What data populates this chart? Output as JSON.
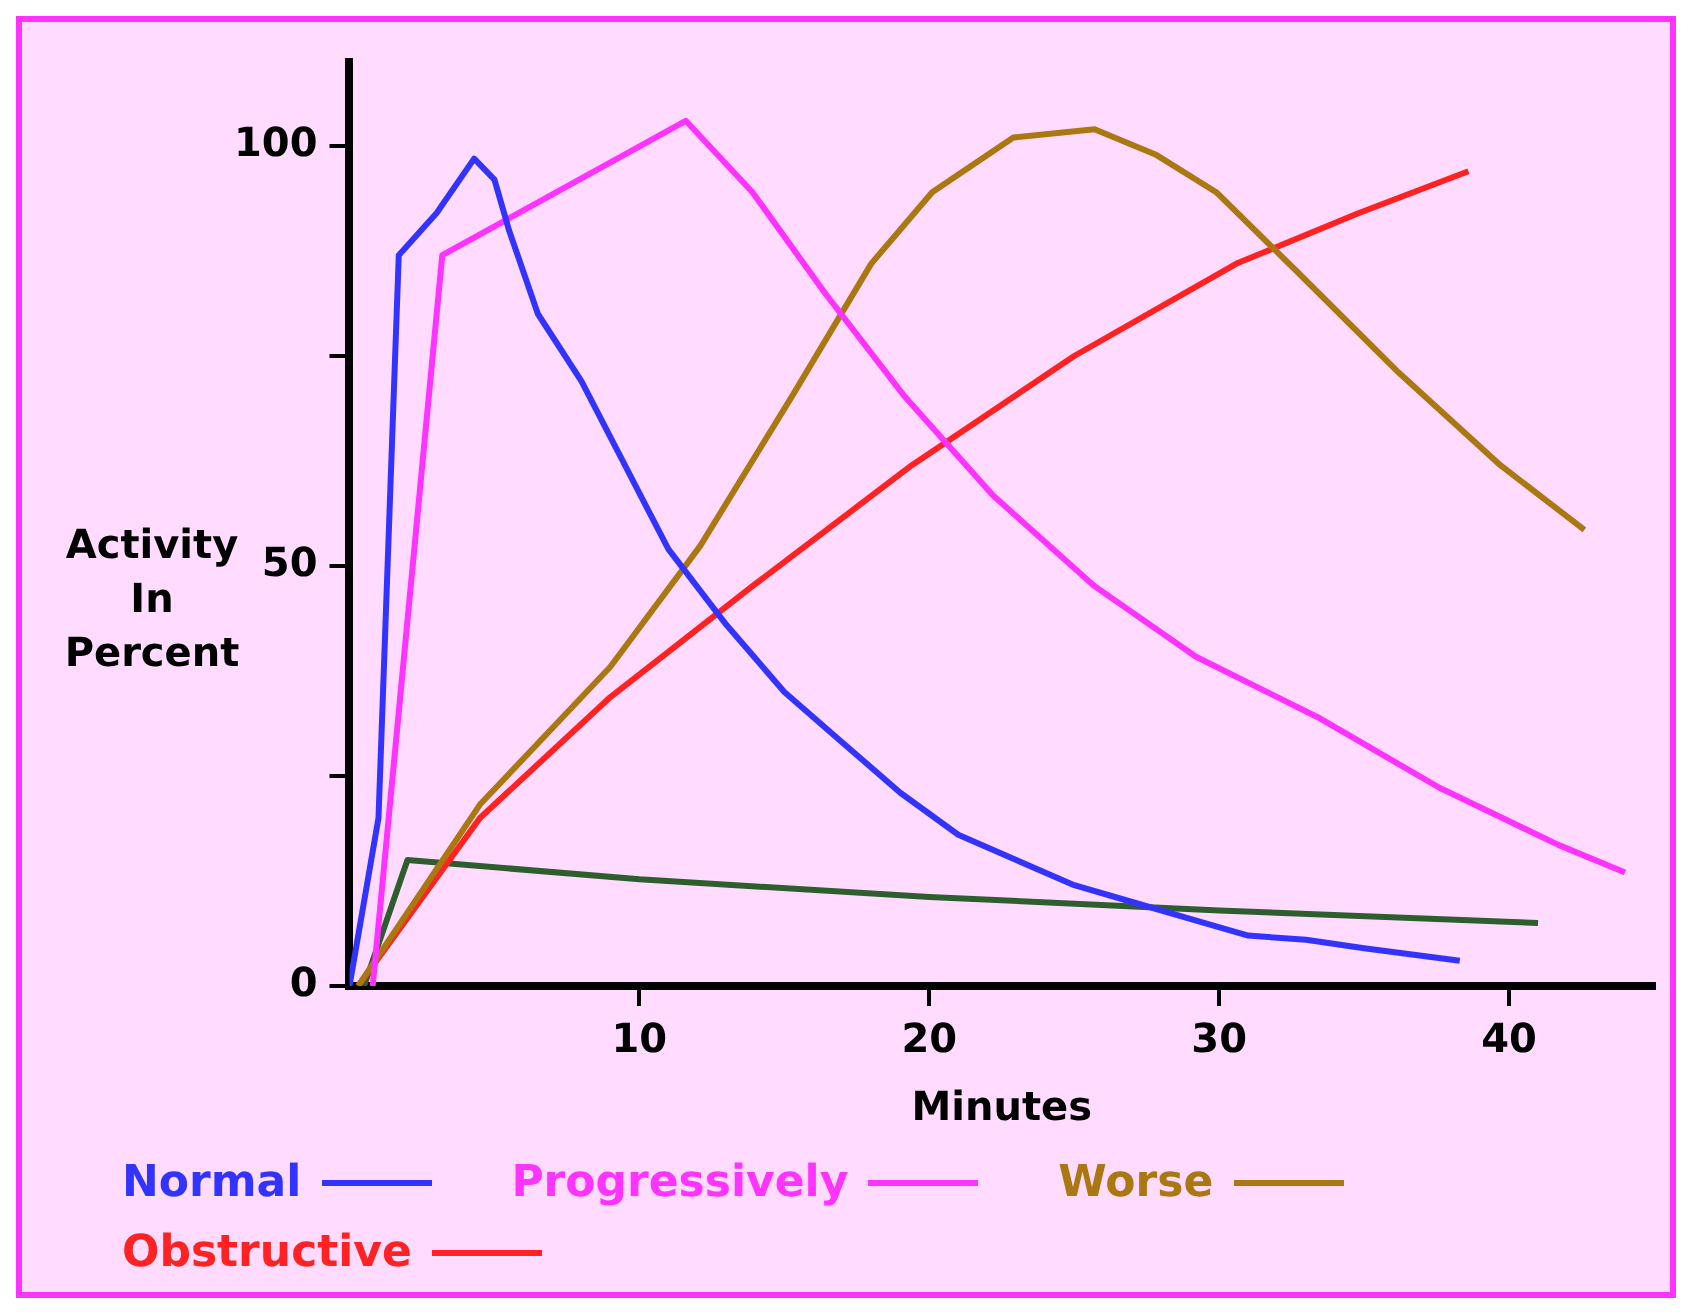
{
  "chart_data": {
    "type": "line",
    "xlabel": "Minutes",
    "ylabel": "Activity In Percent",
    "xlim": [
      0,
      45
    ],
    "ylim": [
      0,
      110
    ],
    "xticks": [
      10,
      20,
      30,
      40
    ],
    "yticks": [
      0,
      {
        "value": 25,
        "label": null
      },
      50,
      {
        "value": 75,
        "label": null
      },
      100
    ],
    "grid": false,
    "legend": "bottom",
    "marker": "none",
    "line_style": "solid",
    "series": [
      {
        "name": "Normal",
        "color": "#3333ff",
        "x": [
          0,
          1,
          1.7,
          3,
          4.3,
          5,
          5.5,
          6.5,
          8,
          9.5,
          11,
          13,
          15,
          17,
          19,
          21,
          23,
          25,
          27,
          29,
          31,
          33,
          35,
          38.3
        ],
        "values": [
          0,
          20,
          87,
          92,
          98.5,
          96,
          90,
          80,
          72,
          62,
          52,
          43,
          35,
          29,
          23,
          18,
          15,
          12,
          10,
          8,
          6,
          5.5,
          4.5,
          3
        ]
      },
      {
        "name": "Progressively",
        "color": "#ff33ff",
        "x": [
          0.8,
          3.2,
          11.6,
          13.9,
          16.4,
          19.1,
          22.2,
          25.7,
          29.2,
          33.4,
          37.6,
          41.7,
          44
        ],
        "values": [
          0,
          87,
          103,
          94.5,
          82.5,
          70.4,
          58.4,
          47.6,
          39.2,
          32,
          23.6,
          16.8,
          13.5
        ]
      },
      {
        "name": "Worse",
        "color": "#aa7711",
        "x": [
          0.3,
          4.5,
          9,
          12.1,
          15.3,
          18,
          20.1,
          22.9,
          25.7,
          27.8,
          29.9,
          32.7,
          36.2,
          39.7,
          42.6
        ],
        "values": [
          0,
          21.6,
          38,
          52.4,
          70.4,
          86,
          94.5,
          101,
          102,
          99,
          94.5,
          85,
          73,
          62,
          54.3
        ]
      },
      {
        "name": "Obstructive",
        "color": "#ff2222",
        "x": [
          0.3,
          4.5,
          9,
          13.9,
          19.4,
          25,
          30.6,
          34.8,
          38.6
        ],
        "values": [
          0,
          20,
          34.4,
          47.6,
          62,
          75,
          86,
          92,
          97
        ]
      },
      {
        "color": "#2e5e2e",
        "x": [
          0.5,
          2,
          10,
          20,
          30,
          41
        ],
        "values": [
          0,
          15,
          12.7,
          10.6,
          9,
          7.5
        ]
      }
    ]
  }
}
